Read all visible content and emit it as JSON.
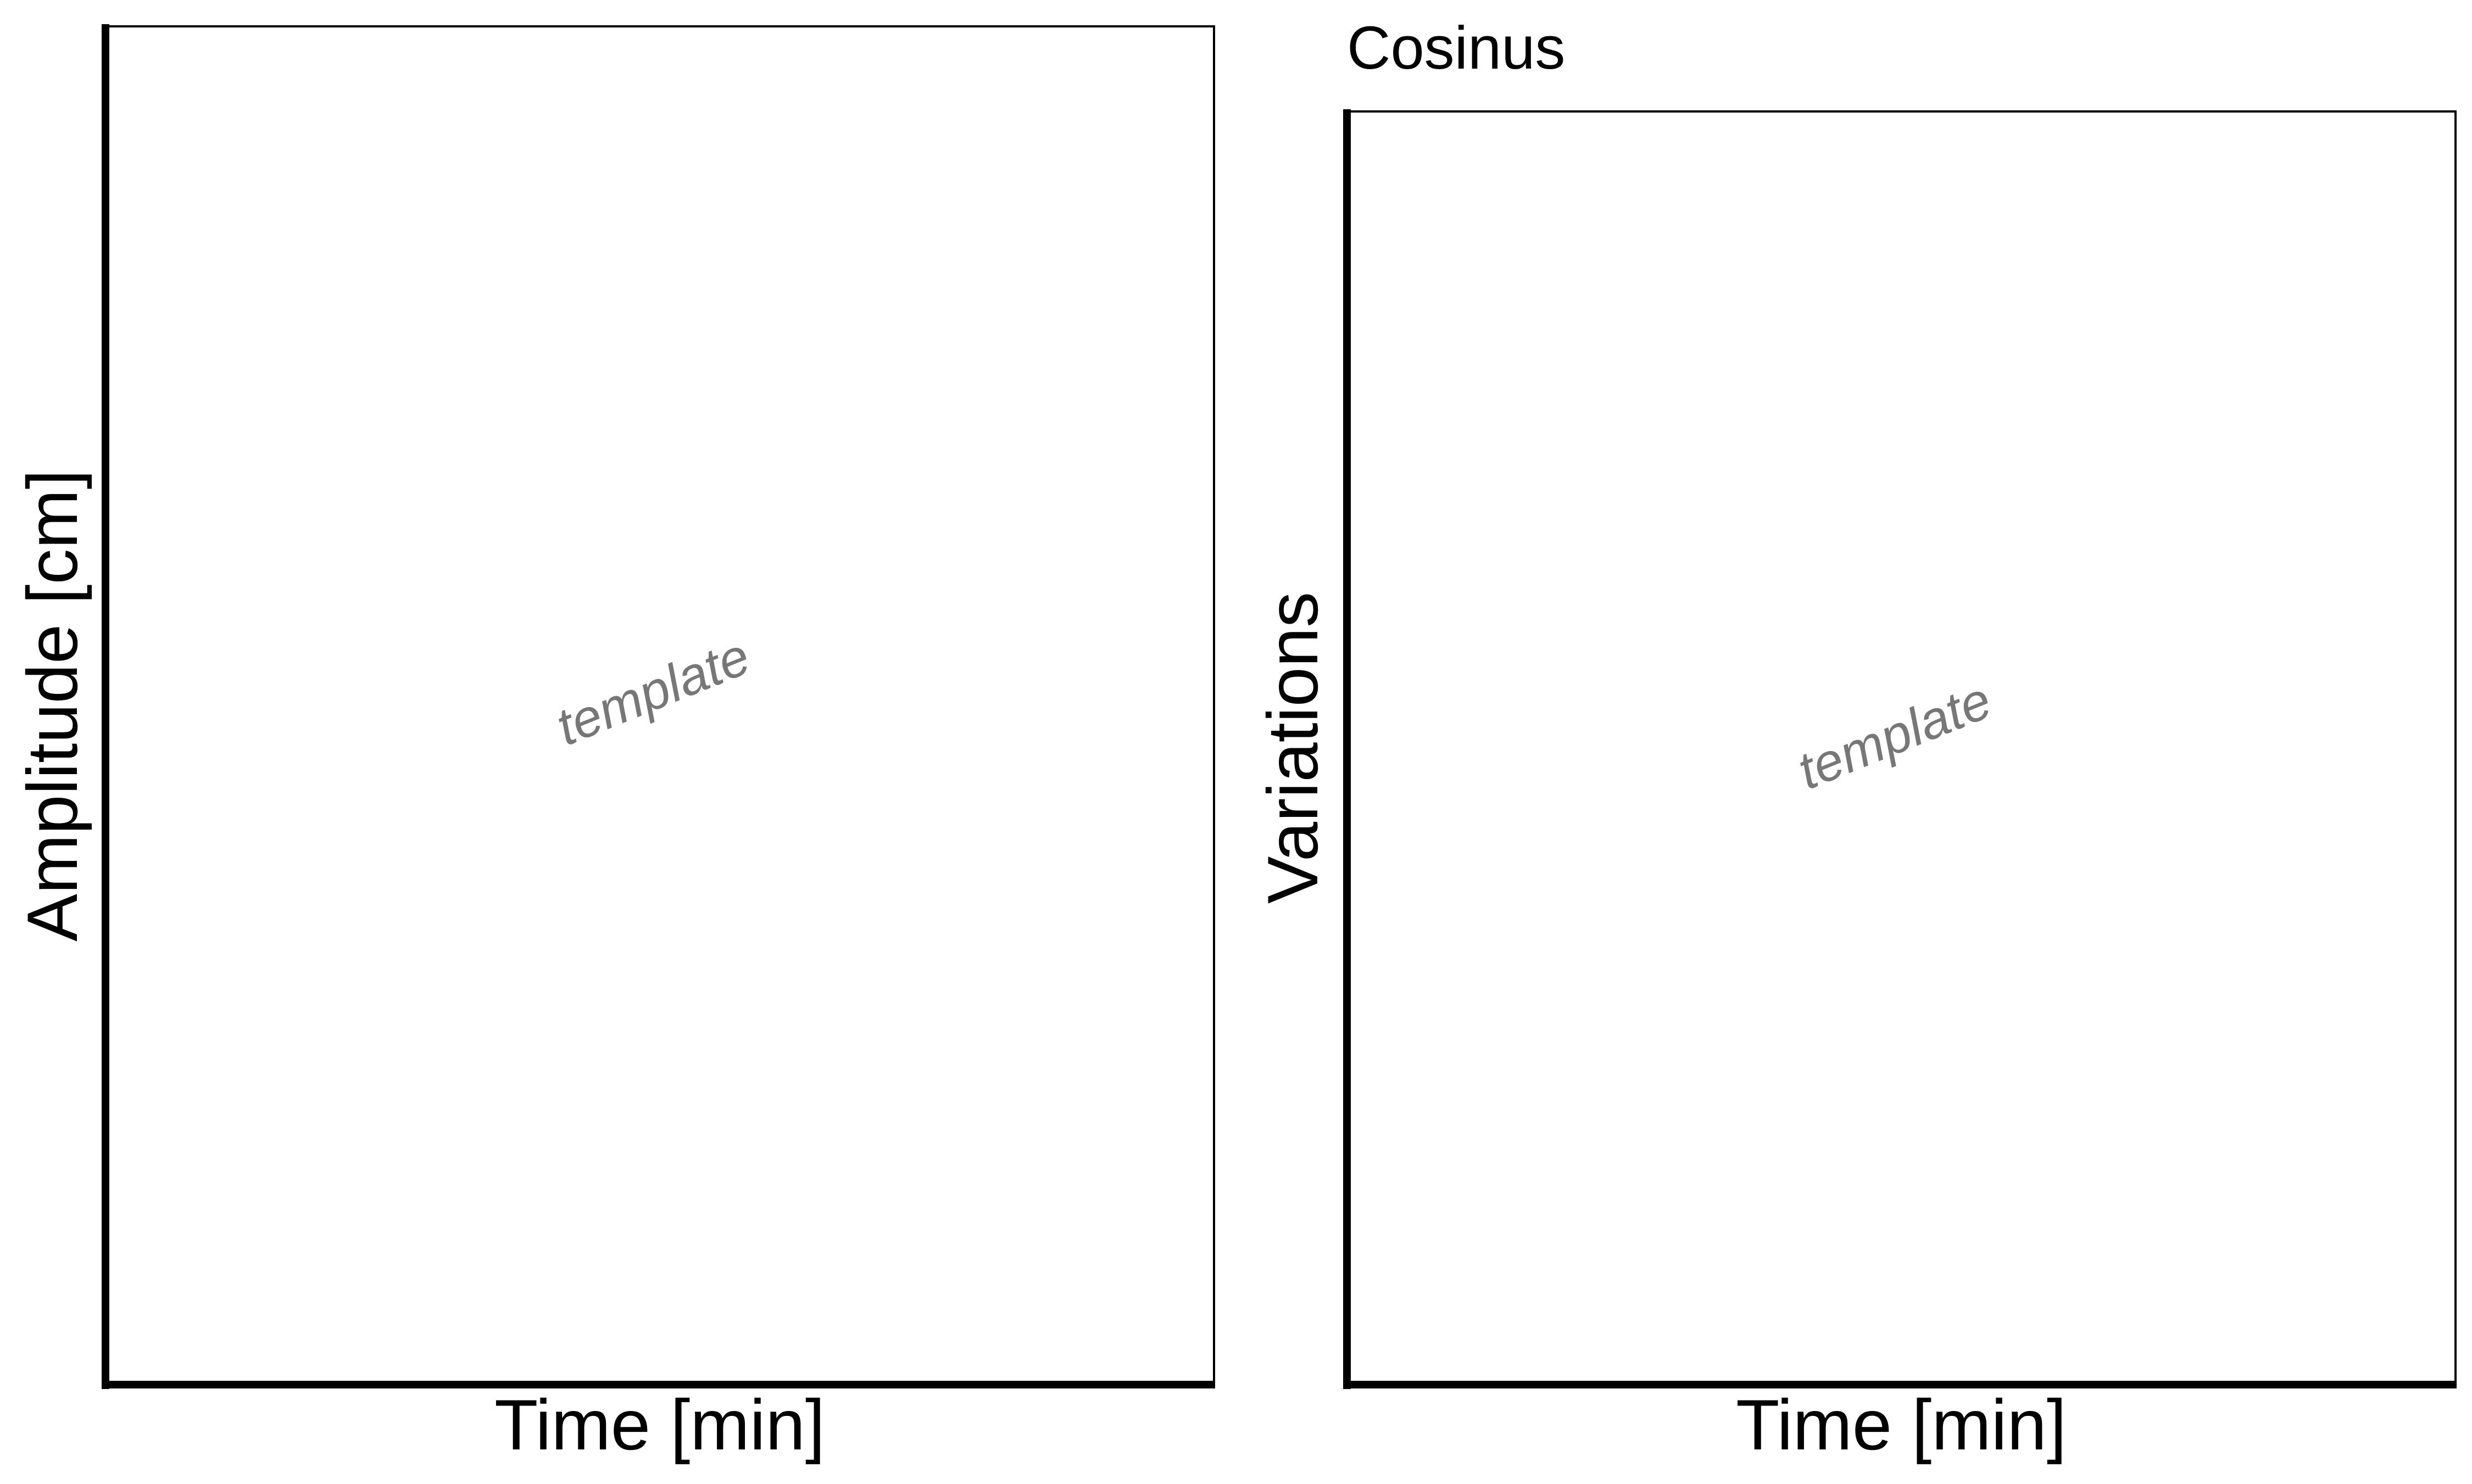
{
  "chart_data": [
    {
      "type": "line",
      "title": "",
      "xlabel": "Time [min]",
      "ylabel": "Amplitude [cm]",
      "watermark": "template",
      "series": []
    },
    {
      "type": "line",
      "title": "Cosinus",
      "xlabel": "Time [min]",
      "ylabel": "Variations",
      "watermark": "template",
      "series": []
    }
  ],
  "colors": {
    "axis": "#000000",
    "frame": "#000000",
    "watermark": "#777777",
    "background": "#ffffff"
  }
}
